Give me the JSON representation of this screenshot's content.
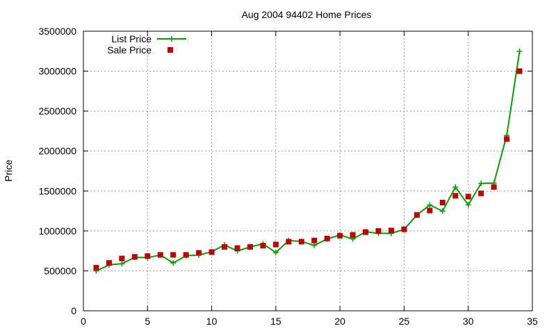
{
  "chart_data": {
    "type": "line",
    "title": "Aug 2004 94402 Home Prices",
    "xlabel": "",
    "ylabel": "Price",
    "xlim": [
      0,
      35
    ],
    "ylim": [
      0,
      3500000
    ],
    "xticks": [
      0,
      5,
      10,
      15,
      20,
      25,
      30,
      35
    ],
    "yticks": [
      0,
      500000,
      1000000,
      1500000,
      2000000,
      2500000,
      3000000,
      3500000
    ],
    "grid": true,
    "legend": "top-left",
    "series": [
      {
        "name": "List Price",
        "style": "line-with-plus-markers",
        "color": "#00a000",
        "x": [
          1,
          2,
          3,
          4,
          5,
          6,
          7,
          8,
          9,
          10,
          11,
          12,
          13,
          14,
          15,
          16,
          17,
          18,
          19,
          20,
          21,
          22,
          23,
          24,
          25,
          26,
          27,
          28,
          29,
          30,
          31,
          32,
          33,
          34
        ],
        "values": [
          499000,
          575000,
          589000,
          669000,
          665000,
          699000,
          599000,
          689000,
          699000,
          739000,
          825000,
          749000,
          799000,
          839000,
          729000,
          879000,
          869000,
          819000,
          899000,
          949000,
          899000,
          989000,
          969000,
          969000,
          1019000,
          1199000,
          1325000,
          1249000,
          1549000,
          1325000,
          1595000,
          1599000,
          2195000,
          3250000
        ]
      },
      {
        "name": "Sale Price",
        "style": "square-markers",
        "color": "#c00000",
        "x": [
          1,
          2,
          3,
          4,
          5,
          6,
          7,
          8,
          9,
          10,
          11,
          12,
          13,
          14,
          15,
          16,
          17,
          18,
          19,
          20,
          21,
          22,
          23,
          24,
          25,
          26,
          27,
          28,
          29,
          30,
          31,
          32,
          33,
          34
        ],
        "values": [
          540000,
          600000,
          655000,
          675000,
          685000,
          700000,
          700000,
          700000,
          725000,
          735000,
          800000,
          785000,
          800000,
          815000,
          830000,
          865000,
          865000,
          880000,
          905000,
          940000,
          950000,
          985000,
          1000000,
          1005000,
          1020000,
          1200000,
          1255000,
          1355000,
          1440000,
          1430000,
          1470000,
          1550000,
          2150000,
          3000000
        ]
      }
    ]
  }
}
